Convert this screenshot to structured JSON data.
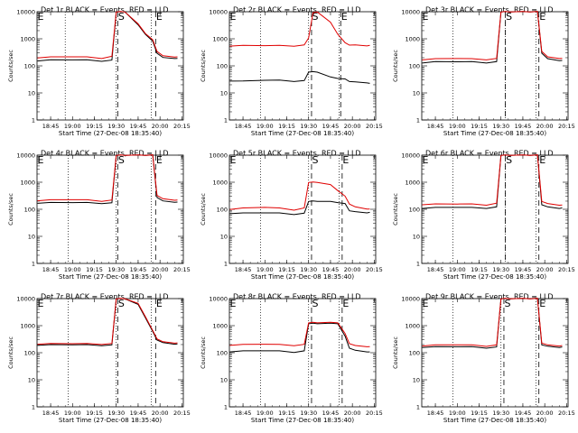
{
  "chart_data": {
    "type": "line",
    "panel_count": 9,
    "layout": "3x3 grid",
    "y_scale": "log",
    "ylim": [
      1,
      10000
    ],
    "yticks": [
      "1",
      "10",
      "100",
      "1000",
      "10000"
    ],
    "ylabel": "Counts/sec",
    "xticks": [
      "18:45",
      "19:00",
      "19:15",
      "19:30",
      "19:45",
      "20:00",
      "20:15"
    ],
    "xlim_minutes": [
      [
        825,
        915
      ],
      [
        825,
        915
      ],
      [
        825,
        915
      ]
    ],
    "xlabel": "Start Time (27-Dec-08 18:35:40)",
    "colors": {
      "events": "#000000",
      "lld": "#e00000"
    },
    "panels": [
      {
        "title": "Det 1r BLACK = Events, RED = LLD",
        "S_time": "19:31",
        "E_time": "19:57",
        "dotted_times": [
          "18:55",
          "19:30",
          "19:54"
        ],
        "series": [
          {
            "color": "black",
            "x": [
              "18:36",
              "18:45",
              "19:00",
              "19:10",
              "19:20",
              "19:27",
              "19:30",
              "19:33",
              "19:36",
              "19:45",
              "19:50",
              "19:55",
              "19:58",
              "20:02",
              "20:10",
              "20:12"
            ],
            "values": [
              155,
              165,
              170,
              165,
              150,
              160,
              10000,
              10000,
              10000,
              3200,
              1500,
              800,
              300,
              200,
              190,
              185
            ]
          },
          {
            "color": "red",
            "x": [
              "18:36",
              "18:45",
              "19:00",
              "19:10",
              "19:20",
              "19:27",
              "19:30",
              "19:33",
              "19:36",
              "19:45",
              "19:50",
              "19:55",
              "19:58",
              "20:02",
              "20:10",
              "20:12"
            ],
            "values": [
              200,
              210,
              220,
              210,
              190,
              220,
              10000,
              10000,
              10000,
              3500,
              1600,
              900,
              350,
              230,
              215,
              210
            ]
          }
        ]
      },
      {
        "title": "Det 2r BLACK = Events, RED = LLD",
        "S_time": "19:32",
        "E_time": "19:52",
        "dotted_times": [
          "18:57",
          "19:30",
          "19:51"
        ],
        "series": [
          {
            "color": "black",
            "x": [
              "18:36",
              "18:45",
              "19:00",
              "19:10",
              "19:20",
              "19:27",
              "19:30",
              "19:33",
              "19:36",
              "19:45",
              "19:50",
              "19:55",
              "19:58",
              "20:02",
              "20:10",
              "20:12"
            ],
            "values": [
              28,
              27,
              30,
              29,
              27,
              28,
              60,
              60,
              60,
              38,
              35,
              32,
              27,
              25,
              24,
              22
            ]
          },
          {
            "color": "red",
            "x": [
              "18:36",
              "18:45",
              "19:00",
              "19:10",
              "19:20",
              "19:27",
              "19:30",
              "19:33",
              "19:36",
              "19:45",
              "19:50",
              "19:55",
              "19:58",
              "20:02",
              "20:10",
              "20:12"
            ],
            "values": [
              550,
              560,
              570,
              560,
              540,
              580,
              1100,
              9000,
              10000,
              4000,
              1500,
              700,
              600,
              580,
              560,
              560
            ]
          }
        ]
      },
      {
        "title": "Det 3r BLACK = Events, RED = LLD",
        "S_time": "19:33",
        "E_time": "19:56",
        "dotted_times": [
          "18:57",
          "19:33",
          "19:54"
        ],
        "series": [
          {
            "color": "black",
            "x": [
              "18:36",
              "18:45",
              "19:00",
              "19:10",
              "19:20",
              "19:27",
              "19:30",
              "19:33",
              "19:36",
              "19:45",
              "19:50",
              "19:55",
              "19:58",
              "20:02",
              "20:10",
              "20:12"
            ],
            "values": [
              130,
              140,
              145,
              140,
              130,
              140,
              10000,
              10000,
              10000,
              10000,
              10000,
              10000,
              300,
              180,
              160,
              155
            ]
          },
          {
            "color": "red",
            "x": [
              "18:36",
              "18:45",
              "19:00",
              "19:10",
              "19:20",
              "19:27",
              "19:30",
              "19:33",
              "19:36",
              "19:45",
              "19:50",
              "19:55",
              "19:58",
              "20:02",
              "20:10",
              "20:12"
            ],
            "values": [
              170,
              180,
              190,
              180,
              170,
              185,
              10000,
              10000,
              10000,
              10000,
              10000,
              10000,
              350,
              210,
              190,
              185
            ]
          }
        ]
      },
      {
        "title": "Det 4r BLACK = Events, RED = LLD",
        "S_time": "19:31",
        "E_time": "19:57",
        "dotted_times": [
          "18:57",
          "19:30",
          "19:54"
        ],
        "series": [
          {
            "color": "black",
            "x": [
              "18:36",
              "18:45",
              "19:00",
              "19:10",
              "19:20",
              "19:27",
              "19:30",
              "19:33",
              "19:36",
              "19:45",
              "19:50",
              "19:55",
              "19:58",
              "20:02",
              "20:10",
              "20:12"
            ],
            "values": [
              170,
              175,
              180,
              175,
              165,
              170,
              10000,
              10000,
              10000,
              10000,
              10000,
              10000,
              280,
              200,
              185,
              180
            ]
          },
          {
            "color": "red",
            "x": [
              "18:36",
              "18:45",
              "19:00",
              "19:10",
              "19:20",
              "19:27",
              "19:30",
              "19:33",
              "19:36",
              "19:45",
              "19:50",
              "19:55",
              "19:58",
              "20:02",
              "20:10",
              "20:12"
            ],
            "values": [
              210,
              220,
              230,
              220,
              200,
              215,
              10000,
              10000,
              10000,
              10000,
              10000,
              10000,
              330,
              240,
              220,
              215
            ]
          }
        ]
      },
      {
        "title": "Det 5r BLACK = Events, RED = LLD",
        "S_time": "19:32",
        "E_time": "19:53",
        "dotted_times": [
          "18:57",
          "19:30",
          "19:51"
        ],
        "series": [
          {
            "color": "black",
            "x": [
              "18:36",
              "18:45",
              "19:00",
              "19:10",
              "19:20",
              "19:27",
              "19:30",
              "19:33",
              "19:36",
              "19:45",
              "19:50",
              "19:55",
              "19:58",
              "20:02",
              "20:10",
              "20:12"
            ],
            "values": [
              70,
              72,
              75,
              72,
              65,
              70,
              200,
              200,
              200,
              190,
              180,
              160,
              90,
              80,
              75,
              75
            ]
          },
          {
            "color": "red",
            "x": [
              "18:36",
              "18:45",
              "19:00",
              "19:10",
              "19:20",
              "19:27",
              "19:30",
              "19:33",
              "19:36",
              "19:45",
              "19:50",
              "19:55",
              "19:58",
              "20:02",
              "20:10",
              "20:12"
            ],
            "values": [
              100,
              110,
              120,
              110,
              95,
              110,
              1000,
              1000,
              1000,
              800,
              500,
              300,
              160,
              120,
              105,
              100
            ]
          }
        ]
      },
      {
        "title": "Det 6r BLACK = Events, RED = LLD",
        "S_time": "19:33",
        "E_time": "19:56",
        "dotted_times": [
          "18:57",
          "19:33",
          "19:54"
        ],
        "series": [
          {
            "color": "black",
            "x": [
              "18:36",
              "18:45",
              "19:00",
              "19:10",
              "19:20",
              "19:27",
              "19:30",
              "19:33",
              "19:36",
              "19:45",
              "19:50",
              "19:55",
              "19:58",
              "20:02",
              "20:10",
              "20:12"
            ],
            "values": [
              110,
              115,
              120,
              115,
              110,
              120,
              10000,
              10000,
              10000,
              10000,
              10000,
              10000,
              150,
              120,
              110,
              110
            ]
          },
          {
            "color": "red",
            "x": [
              "18:36",
              "18:45",
              "19:00",
              "19:10",
              "19:20",
              "19:27",
              "19:30",
              "19:33",
              "19:36",
              "19:45",
              "19:50",
              "19:55",
              "19:58",
              "20:02",
              "20:10",
              "20:12"
            ],
            "values": [
              150,
              155,
              160,
              155,
              145,
              165,
              10000,
              10000,
              10000,
              10000,
              10000,
              10000,
              200,
              160,
              145,
              140
            ]
          }
        ]
      },
      {
        "title": "Det 7r BLACK = Events, RED = LLD",
        "S_time": "19:31",
        "E_time": "19:57",
        "dotted_times": [
          "18:57",
          "19:30",
          "19:54"
        ],
        "series": [
          {
            "color": "black",
            "x": [
              "18:36",
              "18:45",
              "19:00",
              "19:10",
              "19:20",
              "19:27",
              "19:30",
              "19:33",
              "19:36",
              "19:45",
              "19:50",
              "19:55",
              "19:58",
              "20:02",
              "20:10",
              "20:12"
            ],
            "values": [
              190,
              195,
              200,
              195,
              185,
              190,
              10000,
              10000,
              10000,
              6000,
              2000,
              600,
              300,
              230,
              210,
              205
            ]
          },
          {
            "color": "red",
            "x": [
              "18:36",
              "18:45",
              "19:00",
              "19:10",
              "19:20",
              "19:27",
              "19:30",
              "19:33",
              "19:36",
              "19:45",
              "19:50",
              "19:55",
              "19:58",
              "20:02",
              "20:10",
              "20:12"
            ],
            "values": [
              210,
              215,
              220,
              215,
              205,
              215,
              10000,
              10000,
              10000,
              6500,
              2200,
              650,
              330,
              250,
              230,
              225
            ]
          }
        ]
      },
      {
        "title": "Det 8r BLACK = Events, RED = LLD",
        "S_time": "19:32",
        "E_time": "19:53",
        "dotted_times": [
          "18:57",
          "19:30",
          "19:51"
        ],
        "series": [
          {
            "color": "black",
            "x": [
              "18:36",
              "18:45",
              "19:00",
              "19:10",
              "19:20",
              "19:27",
              "19:30",
              "19:33",
              "19:36",
              "19:45",
              "19:50",
              "19:55",
              "19:58",
              "20:02",
              "20:10",
              "20:12"
            ],
            "values": [
              110,
              115,
              120,
              115,
              105,
              115,
              1200,
              1200,
              1200,
              1200,
              1200,
              400,
              150,
              120,
              110,
              105
            ]
          },
          {
            "color": "red",
            "x": [
              "18:36",
              "18:45",
              "19:00",
              "19:10",
              "19:20",
              "19:27",
              "19:30",
              "19:33",
              "19:36",
              "19:45",
              "19:50",
              "19:55",
              "19:58",
              "20:02",
              "20:10",
              "20:12"
            ],
            "values": [
              190,
              200,
              210,
              200,
              185,
              200,
              1300,
              1300,
              1300,
              1300,
              1300,
              500,
              220,
              180,
              170,
              165
            ]
          }
        ]
      },
      {
        "title": "Det 9r BLACK = Events, RED = LLD",
        "S_time": "19:32",
        "E_time": "19:56",
        "dotted_times": [
          "18:57",
          "19:30",
          "19:54"
        ],
        "series": [
          {
            "color": "black",
            "x": [
              "18:36",
              "18:45",
              "19:00",
              "19:10",
              "19:20",
              "19:27",
              "19:30",
              "19:33",
              "19:36",
              "19:45",
              "19:50",
              "19:55",
              "19:58",
              "20:02",
              "20:10",
              "20:12"
            ],
            "values": [
              160,
              165,
              170,
              165,
              150,
              160,
              10000,
              10000,
              10000,
              10000,
              10000,
              10000,
              200,
              170,
              160,
              160
            ]
          },
          {
            "color": "red",
            "x": [
              "18:36",
              "18:45",
              "19:00",
              "19:10",
              "19:20",
              "19:27",
              "19:30",
              "19:33",
              "19:36",
              "19:45",
              "19:50",
              "19:55",
              "19:58",
              "20:02",
              "20:10",
              "20:12"
            ],
            "values": [
              180,
              190,
              200,
              190,
              175,
              190,
              10000,
              10000,
              10000,
              10000,
              10000,
              10000,
              230,
              190,
              180,
              180
            ]
          }
        ]
      }
    ]
  }
}
